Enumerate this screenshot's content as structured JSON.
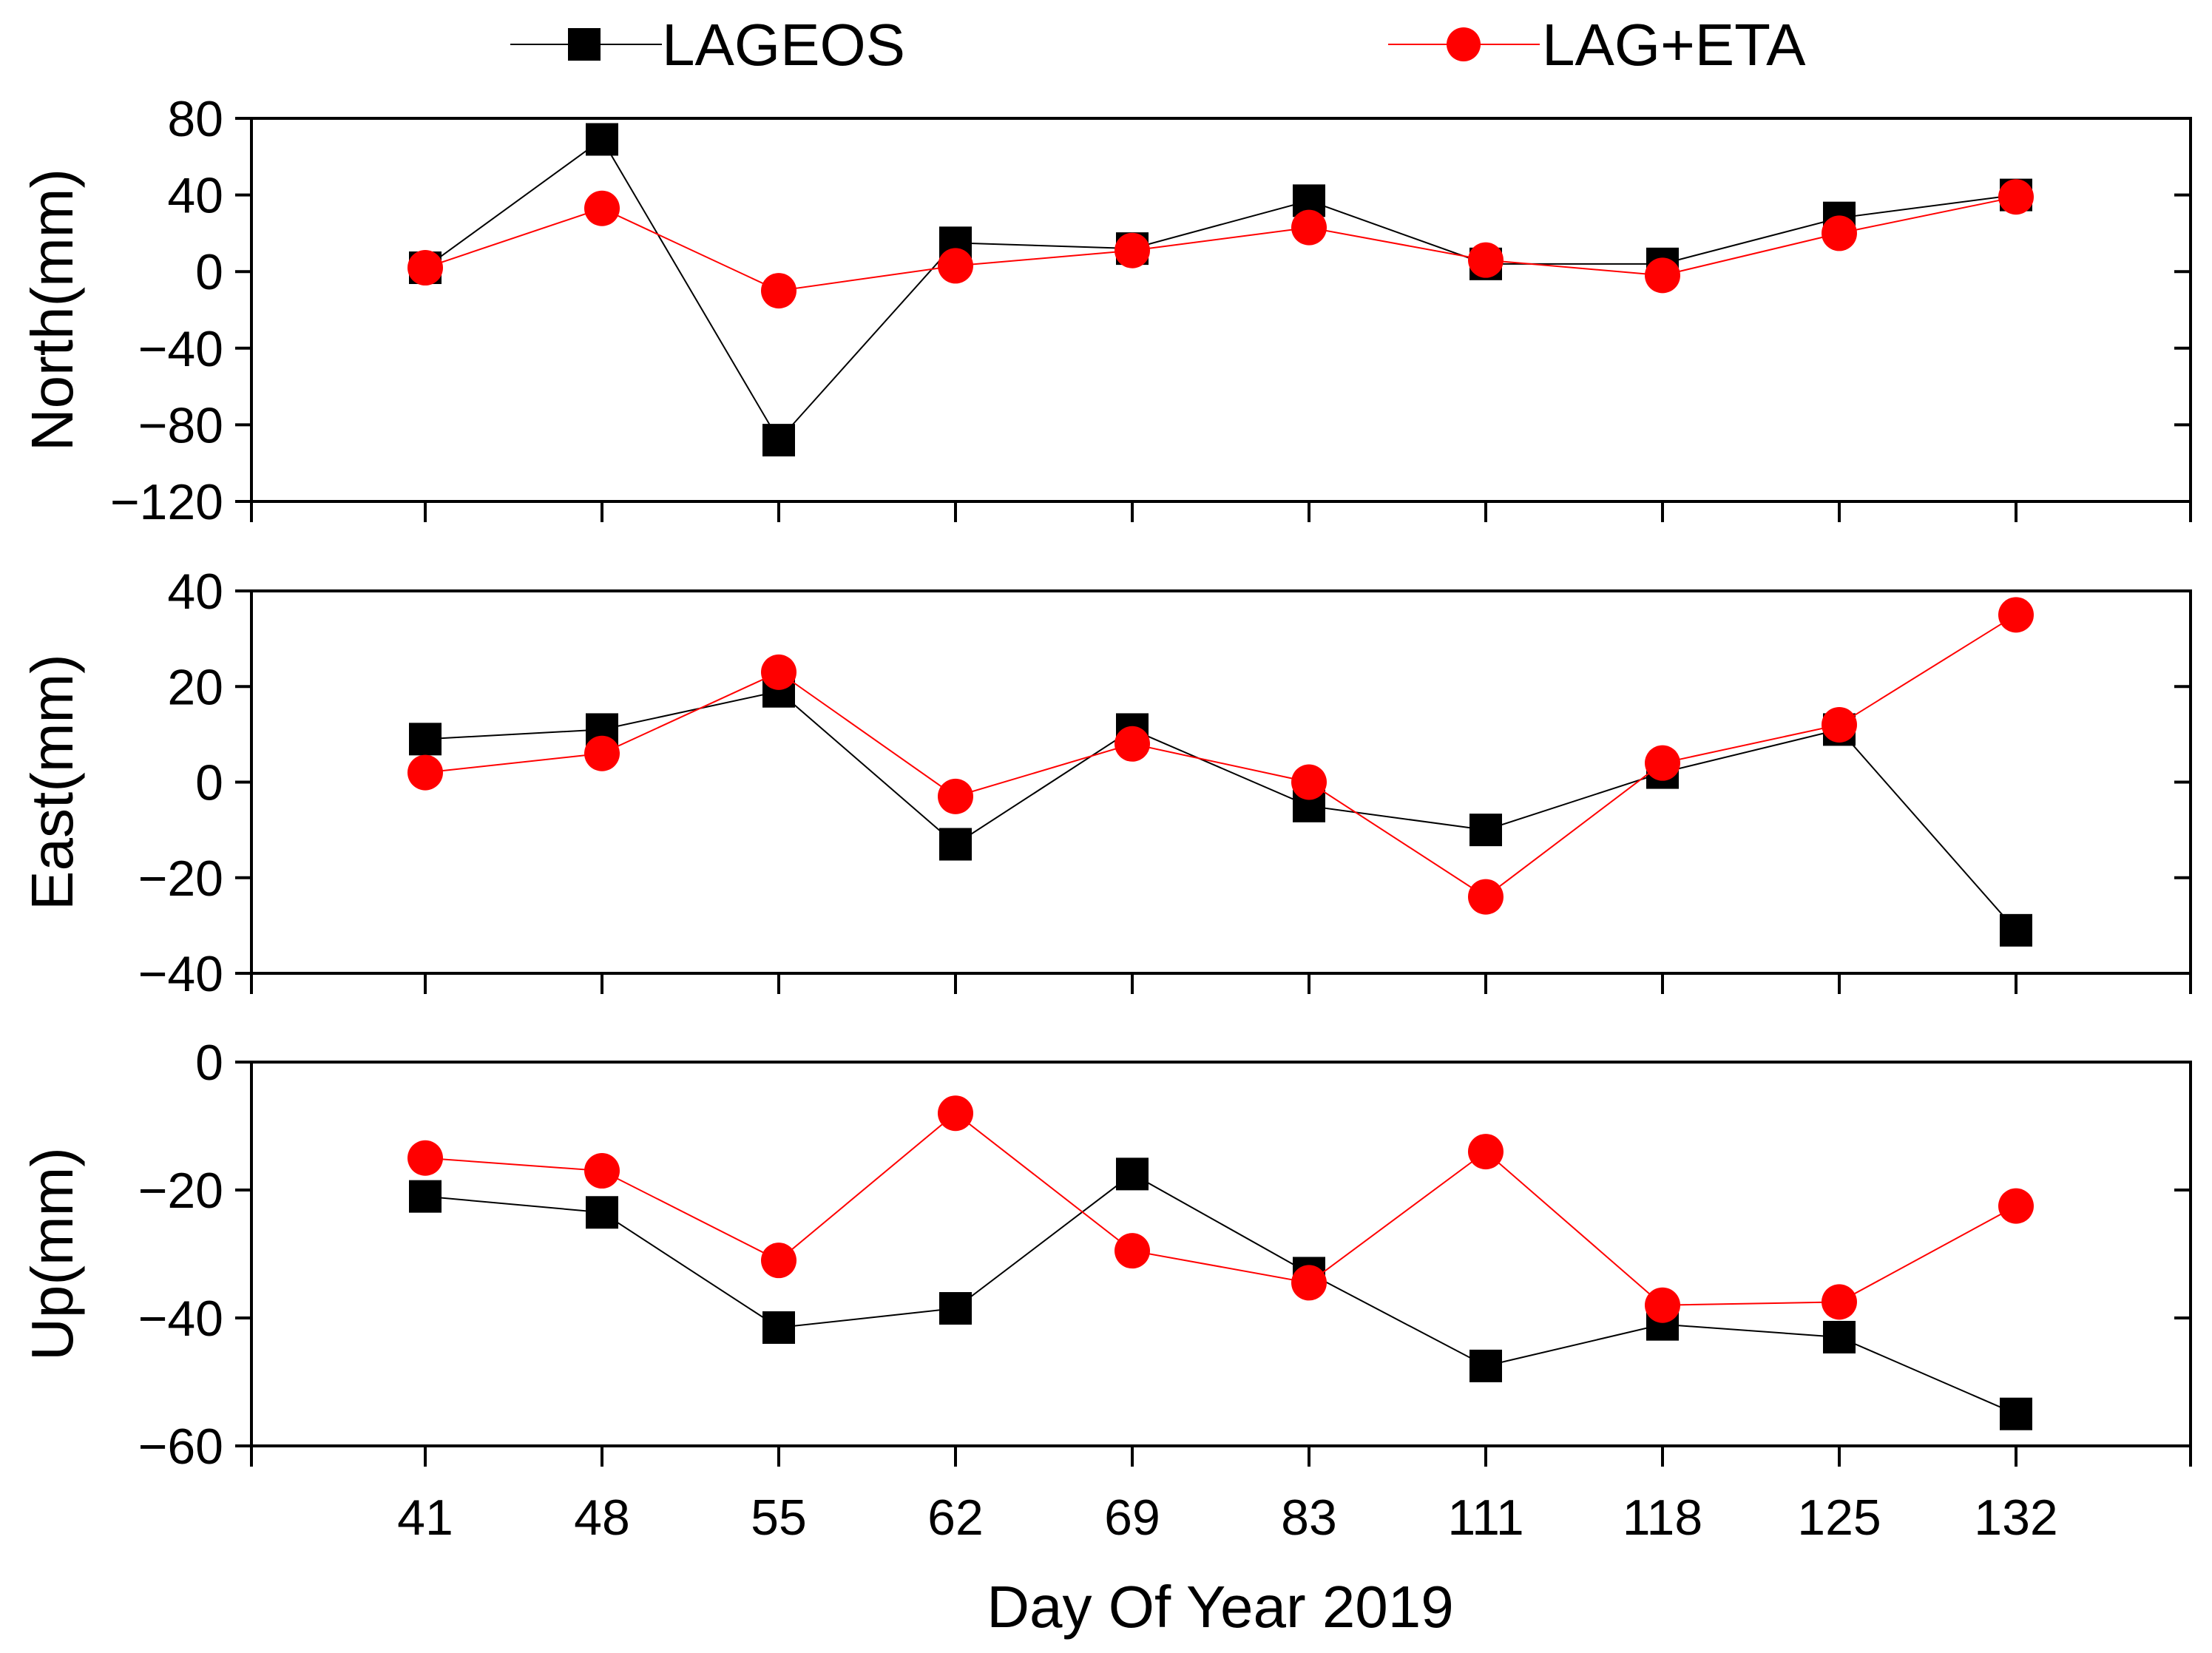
{
  "legend": {
    "items": [
      {
        "label": "LAGEOS",
        "color": "#000000",
        "marker": "square"
      },
      {
        "label": "LAG+ETA",
        "color": "#ff0000",
        "marker": "circle"
      }
    ]
  },
  "xlabel": "Day Of Year 2019",
  "chart_data": [
    {
      "type": "line",
      "ylabel": "North(mm)",
      "ylim": [
        -120,
        80
      ],
      "yticks": [
        80,
        40,
        0,
        -40,
        -80,
        -120
      ],
      "ytick_labels": [
        "80",
        "40",
        "0",
        "−40",
        "−80",
        "−120"
      ],
      "categories": [
        "41",
        "48",
        "55",
        "62",
        "69",
        "83",
        "111",
        "118",
        "125",
        "132"
      ],
      "series": [
        {
          "name": "LAGEOS",
          "values": [
            2,
            69,
            -88,
            15,
            12,
            37,
            4,
            4,
            28,
            40
          ]
        },
        {
          "name": "LAG+ETA",
          "values": [
            2,
            33,
            -10,
            3,
            11,
            23,
            6,
            -2,
            20,
            39
          ]
        }
      ]
    },
    {
      "type": "line",
      "ylabel": "East(mm)",
      "ylim": [
        -40,
        40
      ],
      "yticks": [
        40,
        20,
        0,
        -20,
        -40
      ],
      "ytick_labels": [
        "40",
        "20",
        "0",
        "−20",
        "−40"
      ],
      "categories": [
        "41",
        "48",
        "55",
        "62",
        "69",
        "83",
        "111",
        "118",
        "125",
        "132"
      ],
      "series": [
        {
          "name": "LAGEOS",
          "values": [
            9,
            11,
            19,
            -13,
            11,
            -5,
            -10,
            2,
            11,
            -31
          ]
        },
        {
          "name": "LAG+ETA",
          "values": [
            2,
            6,
            23,
            -3,
            8,
            0,
            -24,
            4,
            12,
            35
          ]
        }
      ]
    },
    {
      "type": "line",
      "ylabel": "Up(mm)",
      "ylim": [
        -60,
        0
      ],
      "yticks": [
        0,
        -20,
        -40,
        -60
      ],
      "ytick_labels": [
        "0",
        "−20",
        "−40",
        "−60"
      ],
      "categories": [
        "41",
        "48",
        "55",
        "62",
        "69",
        "83",
        "111",
        "118",
        "125",
        "132"
      ],
      "series": [
        {
          "name": "LAGEOS",
          "values": [
            -21,
            -23.5,
            -41.5,
            -38.5,
            -17.5,
            -33,
            -47.5,
            -41,
            -43,
            -55
          ]
        },
        {
          "name": "LAG+ETA",
          "values": [
            -15,
            -17,
            -31,
            -8,
            -29.5,
            -34.5,
            -14,
            -38,
            -37.5,
            -22.5
          ]
        }
      ]
    }
  ]
}
